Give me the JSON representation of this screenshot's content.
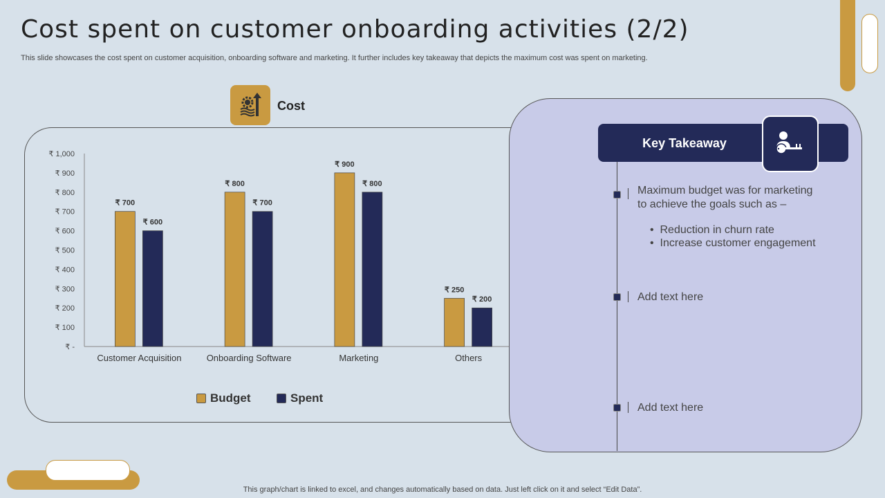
{
  "title": "Cost spent on customer onboarding activities (2/2)",
  "subtitle": "This slide showcases the cost spent on customer acquisition, onboarding software and marketing. It further includes key takeaway that depicts the maximum cost was spent on marketing.",
  "cost_label": "Cost",
  "colors": {
    "budget": "#c99a41",
    "spent": "#232a58",
    "background": "#d7e1ea",
    "panel": "#c8cbe8"
  },
  "chart_data": {
    "type": "bar",
    "categories": [
      "Customer Acquisition",
      "Onboarding Software",
      "Marketing",
      "Others"
    ],
    "series": [
      {
        "name": "Budget",
        "values": [
          700,
          800,
          900,
          250
        ]
      },
      {
        "name": "Spent",
        "values": [
          600,
          700,
          800,
          200
        ]
      }
    ],
    "ylim": [
      0,
      1000
    ],
    "yticks": [
      "₹ -",
      "₹ 100",
      "₹ 200",
      "₹ 300",
      "₹ 400",
      "₹ 500",
      "₹ 600",
      "₹ 700",
      "₹ 800",
      "₹ 900",
      "₹ 1,000"
    ],
    "data_label_prefix": "₹ ",
    "legend": "bottom",
    "grid": false
  },
  "key_takeaway": {
    "title": "Key Takeaway",
    "icon": "person-key-icon",
    "items": [
      {
        "text": "Maximum budget was for marketing to achieve the goals such as –",
        "bullets": [
          "Reduction in churn rate",
          "Increase customer engagement"
        ]
      },
      {
        "text": "Add text here"
      },
      {
        "text": "Add text here"
      }
    ]
  },
  "footer": "This graph/chart is linked to excel,  and changes automatically based on data. Just left click on it and select “Edit Data”."
}
